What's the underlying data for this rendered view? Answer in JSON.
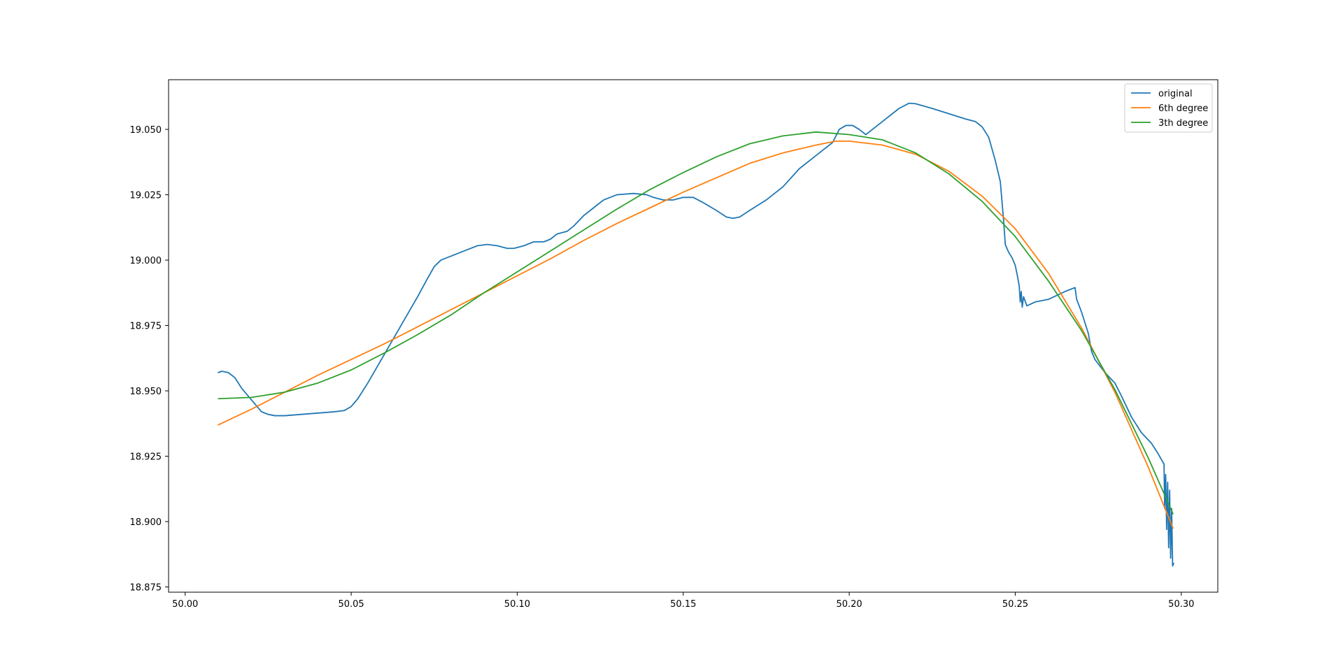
{
  "chart_data": {
    "type": "line",
    "title": "",
    "xlabel": "",
    "ylabel": "",
    "xlim": [
      49.995,
      50.311
    ],
    "ylim": [
      18.873,
      19.069
    ],
    "grid": false,
    "legend_position": "top-right",
    "x_ticks": [
      {
        "value": 50.0,
        "label": "50.00"
      },
      {
        "value": 50.05,
        "label": "50.05"
      },
      {
        "value": 50.1,
        "label": "50.10"
      },
      {
        "value": 50.15,
        "label": "50.15"
      },
      {
        "value": 50.2,
        "label": "50.20"
      },
      {
        "value": 50.25,
        "label": "50.25"
      },
      {
        "value": 50.3,
        "label": "50.30"
      }
    ],
    "y_ticks": [
      {
        "value": 18.875,
        "label": "18.875"
      },
      {
        "value": 18.9,
        "label": "18.900"
      },
      {
        "value": 18.925,
        "label": "18.925"
      },
      {
        "value": 18.95,
        "label": "18.950"
      },
      {
        "value": 18.975,
        "label": "18.975"
      },
      {
        "value": 19.0,
        "label": "19.000"
      },
      {
        "value": 19.025,
        "label": "19.025"
      },
      {
        "value": 19.05,
        "label": "19.050"
      }
    ],
    "series": [
      {
        "name": "original",
        "color": "#1f77b4",
        "points": [
          [
            50.01,
            18.957
          ],
          [
            50.011,
            18.9575
          ],
          [
            50.013,
            18.957
          ],
          [
            50.015,
            18.955
          ],
          [
            50.017,
            18.951
          ],
          [
            50.019,
            18.948
          ],
          [
            50.021,
            18.945
          ],
          [
            50.023,
            18.942
          ],
          [
            50.025,
            18.941
          ],
          [
            50.027,
            18.9405
          ],
          [
            50.03,
            18.9405
          ],
          [
            50.035,
            18.941
          ],
          [
            50.04,
            18.9415
          ],
          [
            50.045,
            18.942
          ],
          [
            50.048,
            18.9425
          ],
          [
            50.05,
            18.944
          ],
          [
            50.052,
            18.947
          ],
          [
            50.055,
            18.953
          ],
          [
            50.06,
            18.964
          ],
          [
            50.065,
            18.975
          ],
          [
            50.07,
            18.986
          ],
          [
            50.073,
            18.993
          ],
          [
            50.075,
            18.9975
          ],
          [
            50.077,
            19.0
          ],
          [
            50.08,
            19.0015
          ],
          [
            50.085,
            19.004
          ],
          [
            50.088,
            19.0055
          ],
          [
            50.091,
            19.006
          ],
          [
            50.094,
            19.0055
          ],
          [
            50.097,
            19.0045
          ],
          [
            50.099,
            19.0045
          ],
          [
            50.102,
            19.0055
          ],
          [
            50.105,
            19.007
          ],
          [
            50.108,
            19.007
          ],
          [
            50.11,
            19.008
          ],
          [
            50.112,
            19.01
          ],
          [
            50.115,
            19.011
          ],
          [
            50.117,
            19.013
          ],
          [
            50.12,
            19.017
          ],
          [
            50.123,
            19.02
          ],
          [
            50.126,
            19.023
          ],
          [
            50.13,
            19.025
          ],
          [
            50.135,
            19.0255
          ],
          [
            50.139,
            19.025
          ],
          [
            50.141,
            19.024
          ],
          [
            50.144,
            19.023
          ],
          [
            50.147,
            19.023
          ],
          [
            50.15,
            19.024
          ],
          [
            50.153,
            19.024
          ],
          [
            50.156,
            19.022
          ],
          [
            50.16,
            19.019
          ],
          [
            50.163,
            19.0165
          ],
          [
            50.165,
            19.016
          ],
          [
            50.167,
            19.0165
          ],
          [
            50.17,
            19.019
          ],
          [
            50.175,
            19.023
          ],
          [
            50.18,
            19.028
          ],
          [
            50.185,
            19.035
          ],
          [
            50.188,
            19.038
          ],
          [
            50.192,
            19.042
          ],
          [
            50.195,
            19.045
          ],
          [
            50.197,
            19.05
          ],
          [
            50.199,
            19.0515
          ],
          [
            50.201,
            19.0515
          ],
          [
            50.203,
            19.05
          ],
          [
            50.205,
            19.048
          ],
          [
            50.207,
            19.05
          ],
          [
            50.21,
            19.053
          ],
          [
            50.215,
            19.058
          ],
          [
            50.218,
            19.06
          ],
          [
            50.22,
            19.0598
          ],
          [
            50.225,
            19.058
          ],
          [
            50.23,
            19.056
          ],
          [
            50.235,
            19.054
          ],
          [
            50.238,
            19.053
          ],
          [
            50.24,
            19.051
          ],
          [
            50.242,
            19.047
          ],
          [
            50.244,
            19.038
          ],
          [
            50.2455,
            19.03
          ],
          [
            50.2465,
            19.015
          ],
          [
            50.247,
            19.006
          ],
          [
            50.248,
            19.003
          ],
          [
            50.249,
            19.001
          ],
          [
            50.25,
            18.998
          ],
          [
            50.2508,
            18.993
          ],
          [
            50.2512,
            18.99
          ],
          [
            50.2515,
            18.984
          ],
          [
            50.2518,
            18.988
          ],
          [
            50.2521,
            18.982
          ],
          [
            50.2525,
            18.986
          ],
          [
            50.2535,
            18.9825
          ],
          [
            50.256,
            18.984
          ],
          [
            50.26,
            18.985
          ],
          [
            50.265,
            18.988
          ],
          [
            50.268,
            18.9895
          ],
          [
            50.2685,
            18.985
          ],
          [
            50.27,
            18.98
          ],
          [
            50.272,
            18.972
          ],
          [
            50.273,
            18.965
          ],
          [
            50.274,
            18.962
          ],
          [
            50.277,
            18.957
          ],
          [
            50.28,
            18.953
          ],
          [
            50.282,
            18.948
          ],
          [
            50.285,
            18.94
          ],
          [
            50.288,
            18.934
          ],
          [
            50.291,
            18.93
          ],
          [
            50.293,
            18.926
          ],
          [
            50.2948,
            18.922
          ],
          [
            50.295,
            18.905
          ],
          [
            50.2953,
            18.918
          ],
          [
            50.2956,
            18.897
          ],
          [
            50.2959,
            18.915
          ],
          [
            50.2962,
            18.89
          ],
          [
            50.2965,
            18.912
          ],
          [
            50.2968,
            18.886
          ],
          [
            50.2971,
            18.905
          ],
          [
            50.2974,
            18.883
          ],
          [
            50.2977,
            18.884
          ]
        ]
      },
      {
        "name": "6th degree",
        "color": "#ff7f0e",
        "points": [
          [
            50.01,
            18.937
          ],
          [
            50.02,
            18.943
          ],
          [
            50.03,
            18.9495
          ],
          [
            50.04,
            18.956
          ],
          [
            50.05,
            18.962
          ],
          [
            50.06,
            18.968
          ],
          [
            50.07,
            18.9745
          ],
          [
            50.08,
            18.981
          ],
          [
            50.09,
            18.9875
          ],
          [
            50.1,
            18.994
          ],
          [
            50.11,
            19.0005
          ],
          [
            50.12,
            19.0075
          ],
          [
            50.13,
            19.014
          ],
          [
            50.14,
            19.02
          ],
          [
            50.15,
            19.026
          ],
          [
            50.16,
            19.0315
          ],
          [
            50.17,
            19.037
          ],
          [
            50.18,
            19.041
          ],
          [
            50.19,
            19.044
          ],
          [
            50.196,
            19.0455
          ],
          [
            50.2,
            19.0455
          ],
          [
            50.21,
            19.044
          ],
          [
            50.22,
            19.0405
          ],
          [
            50.23,
            19.034
          ],
          [
            50.24,
            19.0245
          ],
          [
            50.25,
            19.012
          ],
          [
            50.26,
            18.995
          ],
          [
            50.27,
            18.974
          ],
          [
            50.28,
            18.9495
          ],
          [
            50.29,
            18.921
          ],
          [
            50.2975,
            18.8975
          ]
        ]
      },
      {
        "name": "3th degree",
        "color": "#2ca02c",
        "points": [
          [
            50.01,
            18.947
          ],
          [
            50.02,
            18.9475
          ],
          [
            50.03,
            18.9495
          ],
          [
            50.04,
            18.953
          ],
          [
            50.05,
            18.958
          ],
          [
            50.06,
            18.9645
          ],
          [
            50.07,
            18.9715
          ],
          [
            50.08,
            18.979
          ],
          [
            50.09,
            18.9875
          ],
          [
            50.1,
            18.9955
          ],
          [
            50.11,
            19.0035
          ],
          [
            50.12,
            19.0115
          ],
          [
            50.13,
            19.0195
          ],
          [
            50.14,
            19.027
          ],
          [
            50.15,
            19.0335
          ],
          [
            50.16,
            19.0395
          ],
          [
            50.17,
            19.0445
          ],
          [
            50.18,
            19.0475
          ],
          [
            50.19,
            19.049
          ],
          [
            50.2,
            19.048
          ],
          [
            50.21,
            19.046
          ],
          [
            50.22,
            19.041
          ],
          [
            50.23,
            19.033
          ],
          [
            50.24,
            19.0225
          ],
          [
            50.25,
            19.009
          ],
          [
            50.26,
            18.992
          ],
          [
            50.27,
            18.973
          ],
          [
            50.28,
            18.9505
          ],
          [
            50.29,
            18.9245
          ],
          [
            50.2975,
            18.903
          ]
        ]
      }
    ]
  }
}
